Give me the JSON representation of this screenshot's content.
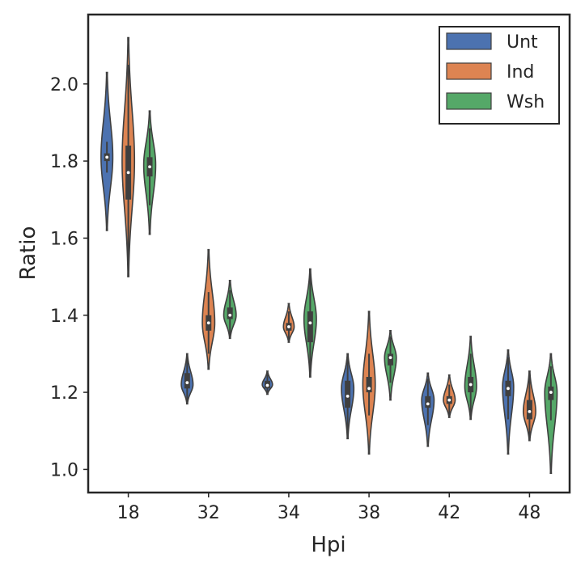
{
  "chart_data": {
    "type": "violin",
    "title": "",
    "xlabel": "Hpi",
    "ylabel": "Ratio",
    "ylim": [
      0.94,
      2.18
    ],
    "yticks": [
      "1.0",
      "1.2",
      "1.4",
      "1.6",
      "1.8",
      "2.0"
    ],
    "categories": [
      "18",
      "32",
      "34",
      "38",
      "42",
      "48"
    ],
    "grid": false,
    "legend": {
      "position": "top-right"
    },
    "series": [
      {
        "name": "Unt",
        "color": "#4c72b0",
        "groups": [
          {
            "min": 1.62,
            "q1": 1.8,
            "median": 1.81,
            "q3": 1.82,
            "max": 2.03,
            "peak": 1.81,
            "width": 0.55
          },
          {
            "min": 1.17,
            "q1": 1.21,
            "median": 1.225,
            "q3": 1.25,
            "max": 1.3,
            "peak": 1.22,
            "width": 0.55
          },
          {
            "min": 1.195,
            "q1": 1.21,
            "median": 1.218,
            "q3": 1.23,
            "max": 1.255,
            "peak": 1.22,
            "width": 0.48
          },
          {
            "min": 1.08,
            "q1": 1.16,
            "median": 1.19,
            "q3": 1.23,
            "max": 1.3,
            "peak": 1.21,
            "width": 0.58
          },
          {
            "min": 1.06,
            "q1": 1.16,
            "median": 1.17,
            "q3": 1.19,
            "max": 1.25,
            "peak": 1.18,
            "width": 0.58
          },
          {
            "min": 1.04,
            "q1": 1.19,
            "median": 1.21,
            "q3": 1.23,
            "max": 1.31,
            "peak": 1.215,
            "width": 0.52
          }
        ]
      },
      {
        "name": "Ind",
        "color": "#dd8452",
        "groups": [
          {
            "min": 1.5,
            "q1": 1.7,
            "median": 1.77,
            "q3": 1.84,
            "max": 2.12,
            "peak": 1.8,
            "width": 0.58
          },
          {
            "min": 1.26,
            "q1": 1.36,
            "median": 1.38,
            "q3": 1.4,
            "max": 1.57,
            "peak": 1.38,
            "width": 0.58
          },
          {
            "min": 1.33,
            "q1": 1.36,
            "median": 1.37,
            "q3": 1.38,
            "max": 1.43,
            "peak": 1.37,
            "width": 0.5
          },
          {
            "min": 1.04,
            "q1": 1.2,
            "median": 1.21,
            "q3": 1.24,
            "max": 1.41,
            "peak": 1.22,
            "width": 0.58
          },
          {
            "min": 1.135,
            "q1": 1.17,
            "median": 1.18,
            "q3": 1.19,
            "max": 1.245,
            "peak": 1.18,
            "width": 0.55
          },
          {
            "min": 1.075,
            "q1": 1.13,
            "median": 1.15,
            "q3": 1.18,
            "max": 1.255,
            "peak": 1.15,
            "width": 0.58
          }
        ]
      },
      {
        "name": "Wsh",
        "color": "#55a868",
        "groups": [
          {
            "min": 1.61,
            "q1": 1.76,
            "median": 1.785,
            "q3": 1.81,
            "max": 1.93,
            "peak": 1.79,
            "width": 0.56
          },
          {
            "min": 1.34,
            "q1": 1.39,
            "median": 1.4,
            "q3": 1.42,
            "max": 1.49,
            "peak": 1.4,
            "width": 0.58
          },
          {
            "min": 1.24,
            "q1": 1.33,
            "median": 1.38,
            "q3": 1.41,
            "max": 1.52,
            "peak": 1.39,
            "width": 0.58
          },
          {
            "min": 1.18,
            "q1": 1.27,
            "median": 1.29,
            "q3": 1.3,
            "max": 1.36,
            "peak": 1.29,
            "width": 0.55
          },
          {
            "min": 1.13,
            "q1": 1.2,
            "median": 1.22,
            "q3": 1.24,
            "max": 1.345,
            "peak": 1.215,
            "width": 0.55
          },
          {
            "min": 0.99,
            "q1": 1.18,
            "median": 1.2,
            "q3": 1.215,
            "max": 1.3,
            "peak": 1.2,
            "width": 0.58
          }
        ]
      }
    ]
  }
}
